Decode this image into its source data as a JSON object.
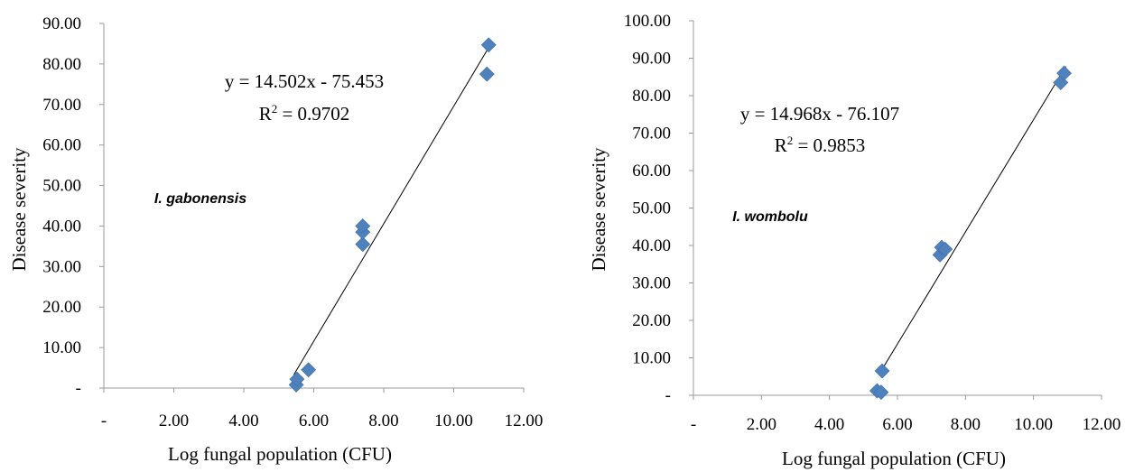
{
  "chart_data": [
    {
      "type": "scatter",
      "annotation": "I. gabonensis",
      "equation": "y = 14.502x - 75.453",
      "r2_prefix": "R",
      "r2_sup": "2",
      "r2_value": " = 0.9702",
      "xlabel": "Log fungal population (CFU)",
      "ylabel": "Disease severity",
      "xlim": [
        0,
        12
      ],
      "ylim": [
        0,
        90
      ],
      "x_ticks": [
        "-",
        "2.00",
        "4.00",
        "6.00",
        "8.00",
        "10.00",
        "12.00"
      ],
      "y_ticks": [
        "-",
        "10.00",
        "20.00",
        "30.00",
        "40.00",
        "50.00",
        "60.00",
        "70.00",
        "80.00",
        "90.00"
      ],
      "trendline": {
        "slope": 14.502,
        "intercept": -75.453,
        "x_range": [
          5.43,
          11.0
        ]
      },
      "points": [
        {
          "x": 5.5,
          "y": 0.8
        },
        {
          "x": 5.52,
          "y": 2.2
        },
        {
          "x": 5.85,
          "y": 4.5
        },
        {
          "x": 7.4,
          "y": 35.5
        },
        {
          "x": 7.4,
          "y": 38.5
        },
        {
          "x": 7.4,
          "y": 40.0
        },
        {
          "x": 10.95,
          "y": 77.5
        },
        {
          "x": 11.0,
          "y": 84.7
        }
      ]
    },
    {
      "type": "scatter",
      "annotation": "I. wombolu",
      "equation": "y = 14.968x - 76.107",
      "r2_prefix": "R",
      "r2_sup": "2",
      "r2_value": " = 0.9853",
      "xlabel": "Log fungal population (CFU)",
      "ylabel": "Disease severity",
      "xlim": [
        0,
        12
      ],
      "ylim": [
        0,
        100
      ],
      "x_ticks": [
        "-",
        "2.00",
        "4.00",
        "6.00",
        "8.00",
        "10.00",
        "12.00"
      ],
      "y_ticks": [
        "-",
        "10.00",
        "20.00",
        "30.00",
        "40.00",
        "50.00",
        "60.00",
        "70.00",
        "80.00",
        "90.00",
        "100.00"
      ],
      "trendline": {
        "slope": 14.968,
        "intercept": -76.107,
        "x_range": [
          5.45,
          10.95
        ]
      },
      "points": [
        {
          "x": 5.4,
          "y": 1.2
        },
        {
          "x": 5.52,
          "y": 0.8
        },
        {
          "x": 5.55,
          "y": 6.5
        },
        {
          "x": 7.25,
          "y": 37.5
        },
        {
          "x": 7.3,
          "y": 39.5
        },
        {
          "x": 7.4,
          "y": 39.0
        },
        {
          "x": 10.8,
          "y": 83.5
        },
        {
          "x": 10.9,
          "y": 86.0
        }
      ]
    }
  ]
}
